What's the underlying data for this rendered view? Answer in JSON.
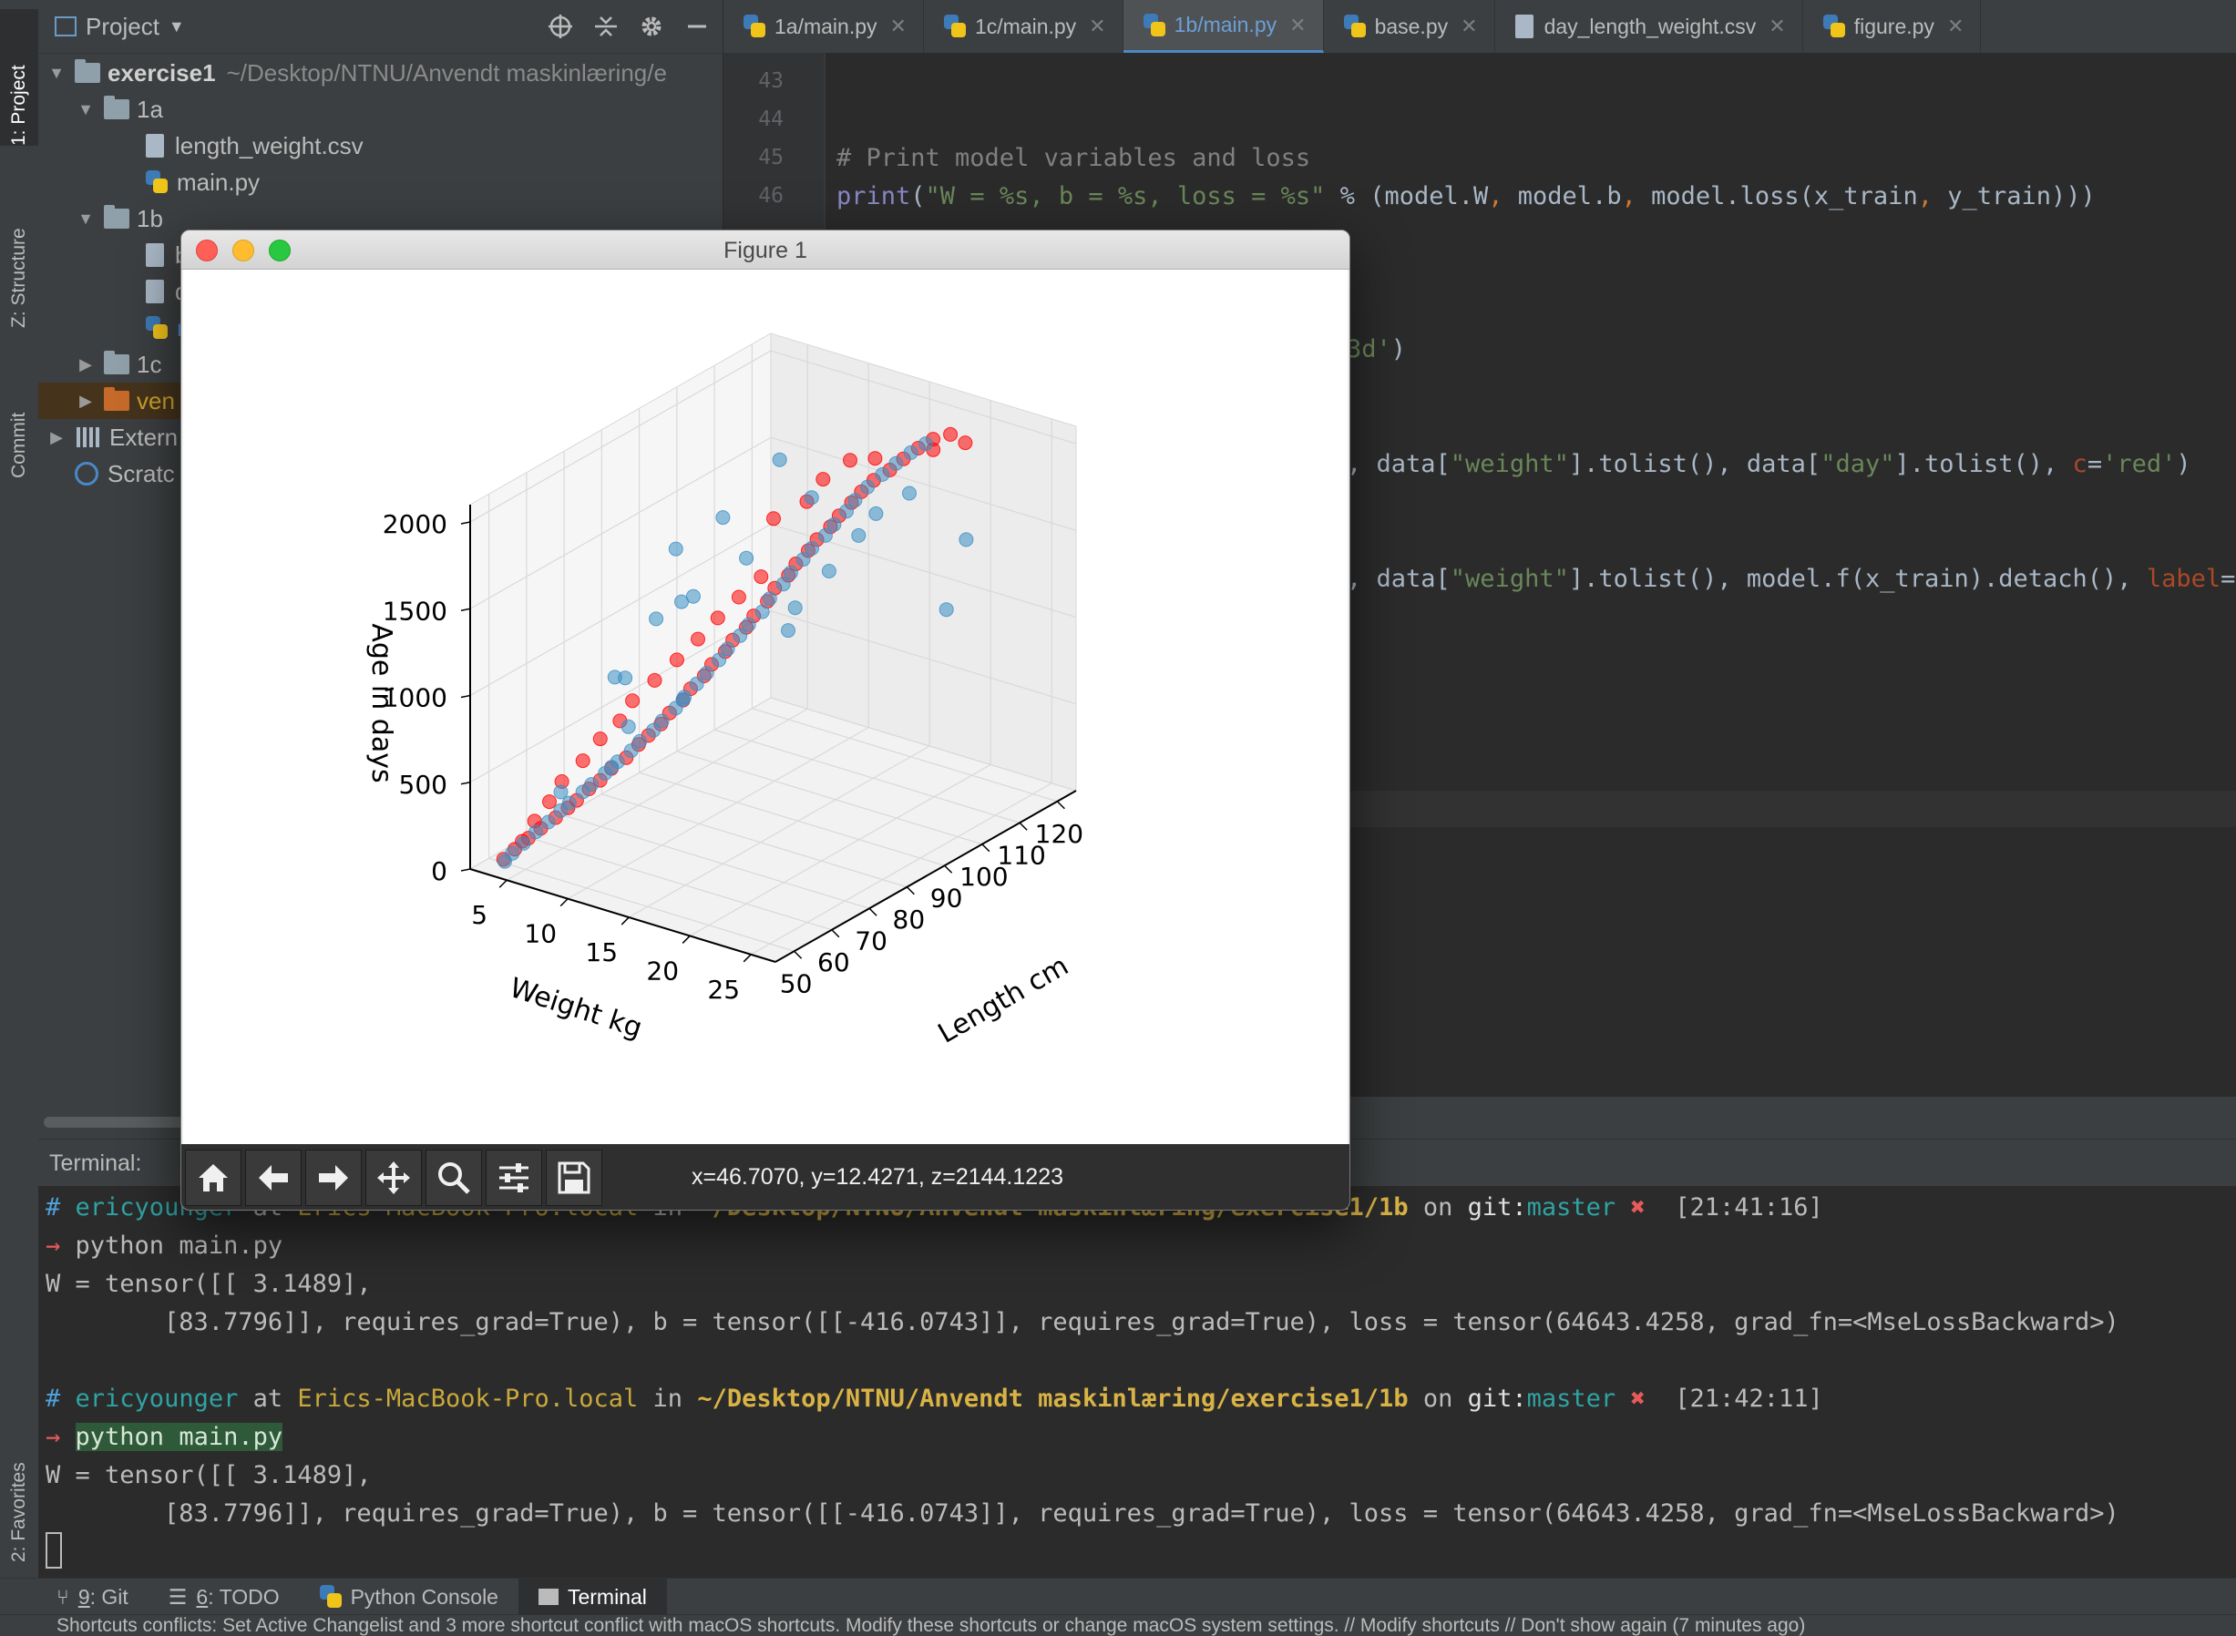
{
  "left_strip": {
    "tabs": [
      {
        "label": "1: Project",
        "active": true
      },
      {
        "label": "Z: Structure",
        "active": false
      },
      {
        "label": "Commit",
        "active": false
      },
      {
        "label": "2: Favorites",
        "active": false
      }
    ]
  },
  "project_panel": {
    "title": "Project",
    "tree": {
      "root_name": "exercise1",
      "root_path": "~/Desktop/NTNU/Anvendt maskinlæring/e",
      "f1a": "1a",
      "f1a_csv": "length_weight.csv",
      "f1a_main": "main.py",
      "f1b": "1b",
      "f1b_c1": "b",
      "f1b_c2": "d",
      "f1b_c3": "r",
      "f1c": "1c",
      "venv": "ven",
      "external": "Extern",
      "scratch": "Scratc"
    }
  },
  "editor_tabs": [
    {
      "label": "1a/main.py",
      "active": false
    },
    {
      "label": "1c/main.py",
      "active": false
    },
    {
      "label": "1b/main.py",
      "active": true
    },
    {
      "label": "base.py",
      "active": false
    },
    {
      "label": "day_length_weight.csv",
      "active": false
    },
    {
      "label": "figure.py",
      "active": false
    }
  ],
  "editor": {
    "line_numbers": [
      "43",
      "44",
      "45",
      "46"
    ],
    "comment_line": "# Print model variables and loss",
    "print_line": {
      "fn": "print",
      "open": "(",
      "string": "\"W = %s, b = %s, loss = %s\"",
      "rest_a": " % (model.W",
      "comma": ",",
      "rest_b": " model.b",
      "rest_c": " model.loss(x_train",
      "rest_d": " y_train)))"
    },
    "line_3d": {
      "string": "3d'",
      "rest": ")"
    },
    "line_scatter1": {
      "a": ", data[",
      "s1": "\"weight\"",
      "b": "].tolist(), data[",
      "s2": "\"day\"",
      "c": "].tolist(), ",
      "param": "c",
      "eq": "=",
      "s3": "'red'",
      "d": ")"
    },
    "line_scatter2": {
      "a": ", data[",
      "s1": "\"weight\"",
      "b": "].tolist(), model.f(x_train).detach(), ",
      "param": "label",
      "eq": "=",
      "s3": "'"
    }
  },
  "figure": {
    "window_title": "Figure 1",
    "coords_readout": "x=46.7070, y=12.4271, z=2144.1223",
    "toolbar_icons": [
      "home-icon",
      "back-arrow-icon",
      "forward-arrow-icon",
      "pan-icon",
      "zoom-icon",
      "configure-subplots-icon",
      "save-icon"
    ]
  },
  "chart_data": {
    "type": "scatter",
    "projection": "3d",
    "title": "",
    "xlabel": "Length cm",
    "ylabel": "Weight kg",
    "zlabel": "Age in days",
    "x_ticks": [
      "50",
      "60",
      "70",
      "80",
      "90",
      "100",
      "110",
      "120"
    ],
    "y_ticks": [
      "25",
      "20",
      "15",
      "10",
      "5"
    ],
    "z_ticks": [
      "0",
      "500",
      "1000",
      "1500",
      "2000"
    ],
    "xlim": [
      45,
      125
    ],
    "ylim": [
      2,
      27
    ],
    "zlim": [
      0,
      2100
    ],
    "grid": true,
    "series": [
      {
        "color": "#ff0000",
        "points": [
          [
            50,
            3.2,
            20
          ],
          [
            52,
            3.5,
            60
          ],
          [
            54,
            4.0,
            110
          ],
          [
            56,
            4.4,
            150
          ],
          [
            58,
            5.0,
            200
          ],
          [
            60,
            5.4,
            240
          ],
          [
            61,
            5.8,
            280
          ],
          [
            63,
            6.2,
            330
          ],
          [
            64,
            6.8,
            380
          ],
          [
            66,
            7.1,
            430
          ],
          [
            68,
            7.7,
            480
          ],
          [
            70,
            8.1,
            540
          ],
          [
            71,
            8.6,
            590
          ],
          [
            73,
            9.0,
            640
          ],
          [
            74,
            9.4,
            700
          ],
          [
            76,
            9.9,
            760
          ],
          [
            77,
            10.2,
            820
          ],
          [
            79,
            10.7,
            880
          ],
          [
            80,
            11.0,
            940
          ],
          [
            82,
            11.5,
            1000
          ],
          [
            83,
            11.8,
            1060
          ],
          [
            85,
            12.3,
            1120
          ],
          [
            86,
            12.6,
            1180
          ],
          [
            88,
            13.1,
            1250
          ],
          [
            89,
            13.4,
            1320
          ],
          [
            91,
            13.9,
            1380
          ],
          [
            92,
            14.2,
            1440
          ],
          [
            94,
            14.6,
            1500
          ],
          [
            95,
            15.0,
            1560
          ],
          [
            97,
            15.5,
            1620
          ],
          [
            98,
            15.9,
            1680
          ],
          [
            100,
            16.3,
            1740
          ],
          [
            101,
            16.8,
            1800
          ],
          [
            103,
            17.2,
            1850
          ],
          [
            105,
            17.9,
            1900
          ],
          [
            107,
            18.4,
            1950
          ],
          [
            109,
            19.0,
            2000
          ],
          [
            111,
            19.6,
            2040
          ],
          [
            113,
            20.4,
            2060
          ],
          [
            115,
            21.0,
            2000
          ],
          [
            112,
            19.3,
            1960
          ],
          [
            104,
            17.0,
            1960
          ],
          [
            99,
            16.5,
            2000
          ],
          [
            96,
            15.2,
            1900
          ],
          [
            93,
            14.8,
            1800
          ],
          [
            90,
            13.0,
            1700
          ],
          [
            87,
            12.9,
            1400
          ],
          [
            84,
            12.0,
            1300
          ],
          [
            81,
            11.2,
            1200
          ],
          [
            78,
            10.5,
            1100
          ],
          [
            75,
            9.7,
            1000
          ],
          [
            72,
            8.8,
            900
          ],
          [
            69,
            7.9,
            800
          ],
          [
            67,
            7.5,
            700
          ],
          [
            65,
            6.5,
            600
          ],
          [
            62,
            6.0,
            500
          ],
          [
            59,
            5.2,
            400
          ],
          [
            57,
            4.8,
            300
          ],
          [
            55,
            4.2,
            200
          ],
          [
            53,
            3.8,
            100
          ]
        ]
      },
      {
        "color": "#3b8fc4",
        "points": [
          [
            50,
            3.3,
            10
          ],
          [
            51,
            3.6,
            50
          ],
          [
            53,
            3.9,
            90
          ],
          [
            55,
            4.3,
            140
          ],
          [
            57,
            4.7,
            180
          ],
          [
            59,
            5.1,
            230
          ],
          [
            60,
            5.5,
            270
          ],
          [
            62,
            6.0,
            320
          ],
          [
            63,
            6.4,
            360
          ],
          [
            65,
            6.9,
            410
          ],
          [
            67,
            7.3,
            460
          ],
          [
            69,
            7.8,
            510
          ],
          [
            70,
            8.2,
            560
          ],
          [
            72,
            8.7,
            610
          ],
          [
            73,
            9.1,
            660
          ],
          [
            75,
            9.6,
            720
          ],
          [
            76,
            10.0,
            780
          ],
          [
            78,
            10.4,
            840
          ],
          [
            79,
            10.9,
            900
          ],
          [
            81,
            11.3,
            960
          ],
          [
            82,
            11.7,
            1020
          ],
          [
            84,
            12.1,
            1080
          ],
          [
            85,
            12.5,
            1140
          ],
          [
            87,
            13.0,
            1200
          ],
          [
            88,
            13.3,
            1270
          ],
          [
            90,
            13.8,
            1340
          ],
          [
            91,
            14.1,
            1400
          ],
          [
            93,
            14.5,
            1460
          ],
          [
            94,
            14.9,
            1520
          ],
          [
            96,
            15.4,
            1580
          ],
          [
            97,
            15.8,
            1640
          ],
          [
            99,
            16.2,
            1700
          ],
          [
            100,
            16.6,
            1760
          ],
          [
            102,
            17.0,
            1820
          ],
          [
            104,
            17.6,
            1880
          ],
          [
            106,
            18.1,
            1930
          ],
          [
            108,
            18.7,
            1980
          ],
          [
            110,
            19.3,
            2020
          ],
          [
            75,
            8.0,
            1200
          ],
          [
            80,
            9.5,
            1300
          ],
          [
            86,
            12.0,
            1500
          ],
          [
            70,
            7.0,
            900
          ],
          [
            95,
            16.0,
            1400
          ],
          [
            98,
            17.5,
            1600
          ],
          [
            89,
            14.5,
            1100
          ],
          [
            77,
            9.0,
            1600
          ],
          [
            83,
            11.0,
            1750
          ],
          [
            92,
            15.5,
            1850
          ],
          [
            66,
            8.5,
            700
          ],
          [
            74,
            10.5,
            800
          ],
          [
            101,
            18.0,
            1700
          ],
          [
            105,
            19.5,
            1800
          ],
          [
            68,
            6.5,
            400
          ],
          [
            61,
            4.5,
            300
          ],
          [
            110,
            21.0,
            1100
          ],
          [
            112,
            22.0,
            1500
          ],
          [
            90,
            13.5,
            2050
          ],
          [
            64,
            8.0,
            1000
          ],
          [
            86,
            16.0,
            1300
          ],
          [
            72,
            11.0,
            1400
          ]
        ]
      }
    ]
  },
  "terminal": {
    "label": "Terminal:",
    "prompt1": {
      "hash": "#",
      "user": "ericyounger",
      "at": "at",
      "host": "Erics-MacBook-Pro.local",
      "in": "in",
      "path": "~/Desktop/NTNU/Anvendt maskinlæring/exercise1/1b",
      "on": "on",
      "git": "git:",
      "branch": "master",
      "mark": "✖",
      "time": "[21:41:16]"
    },
    "cmd1": "python main.py",
    "out1a": "W = tensor([[ 3.1489],",
    "out1b": "        [83.7796]], requires_grad=True), b = tensor([[-416.0743]], requires_grad=True), loss = tensor(64643.4258, grad_fn=<MseLossBackward>)",
    "prompt2": {
      "hash": "#",
      "user": "ericyounger",
      "at": "at",
      "host": "Erics-MacBook-Pro.local",
      "in": "in",
      "path": "~/Desktop/NTNU/Anvendt maskinlæring/exercise1/1b",
      "on": "on",
      "git": "git:",
      "branch": "master",
      "mark": "✖",
      "time": "[21:42:11]"
    },
    "cmd2": "python main.py",
    "out2a": "W = tensor([[ 3.1489],",
    "out2b": "        [83.7796]], requires_grad=True), b = tensor([[-416.0743]], requires_grad=True), loss = tensor(64643.4258, grad_fn=<MseLossBackward>)",
    "arrow": "→"
  },
  "bottom_tabs": [
    {
      "num": "9",
      "label": ": Git",
      "active": false
    },
    {
      "num": "6",
      "label": ": TODO",
      "active": false
    },
    {
      "num": "",
      "label": "Python Console",
      "active": false
    },
    {
      "num": "",
      "label": "Terminal",
      "active": true
    }
  ],
  "status_bar": {
    "message": "Shortcuts conflicts: Set Active Changelist and 3 more shortcut conflict with macOS shortcuts. Modify these shortcuts or change macOS system settings. // Modify shortcuts // Don't show again (7 minutes ago)"
  }
}
